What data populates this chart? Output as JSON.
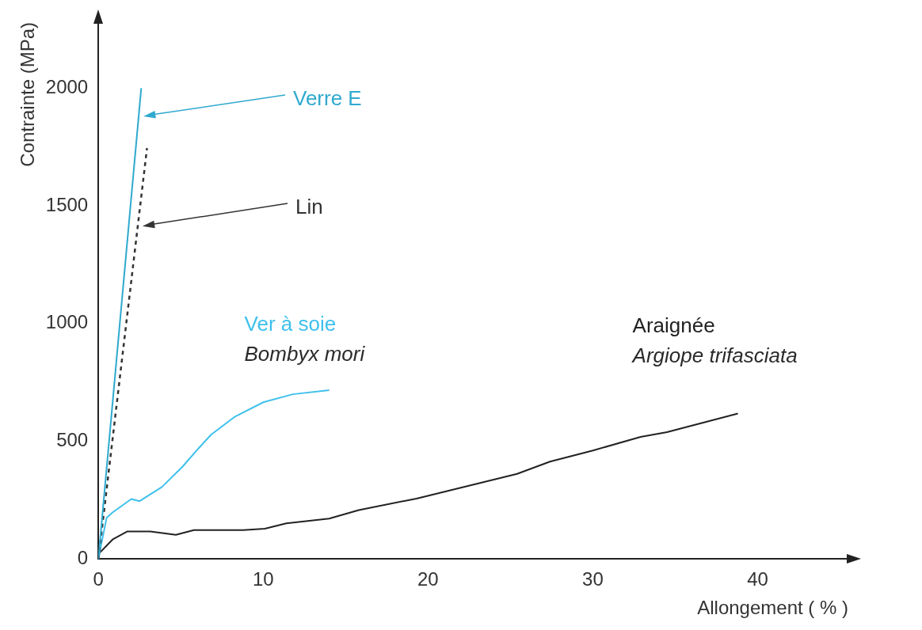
{
  "chart_data": {
    "type": "line",
    "xlabel": "Allongement ( % )",
    "ylabel": "Contrainte (MPa)",
    "xlim": [
      0,
      45.5
    ],
    "xticks": [
      0,
      10,
      20,
      30,
      40
    ],
    "ylim": [
      0,
      2280
    ],
    "yticks": [
      0,
      500,
      1000,
      1500,
      2000
    ],
    "grid": false,
    "legend": false,
    "marker": "none",
    "series": [
      {
        "name": "Verre E",
        "color": "#2fa9cf",
        "line_style": "solid",
        "x": [
          0,
          2.6
        ],
        "values": [
          0,
          2000
        ]
      },
      {
        "name": "Lin",
        "color": "#333333",
        "line_style": "dashed",
        "x": [
          0,
          2.95
        ],
        "values": [
          0,
          1745
        ]
      },
      {
        "name": "Ver à soie",
        "color": "#3ec0ec",
        "line_style": "solid",
        "x": [
          0,
          0.07,
          0.5,
          0.86,
          2.0,
          2.5,
          3.85,
          5.1,
          6.1,
          6.85,
          8.25,
          10.0,
          11.8,
          14.0
        ],
        "values": [
          0,
          26,
          175,
          198,
          255,
          246,
          306,
          392,
          472,
          529,
          603,
          666,
          700,
          717
        ]
      },
      {
        "name": "Araignée",
        "color": "#222222",
        "line_style": "solid",
        "x": [
          0,
          0.07,
          0.86,
          1.74,
          3.15,
          4.7,
          5.8,
          8.8,
          10.1,
          11.4,
          14.0,
          15.8,
          19.3,
          25.4,
          27.4,
          30.0,
          32.9,
          34.5,
          38.8
        ],
        "values": [
          0,
          26,
          83,
          117,
          117,
          103,
          123,
          123,
          129,
          152,
          172,
          208,
          257,
          362,
          414,
          461,
          519,
          539,
          618
        ]
      }
    ],
    "annotations": [
      {
        "text": "Bombyx mori",
        "x": 14.0,
        "y": 717
      },
      {
        "text": "Argiope trifasciata",
        "x": 38.8,
        "y": 618
      }
    ]
  }
}
